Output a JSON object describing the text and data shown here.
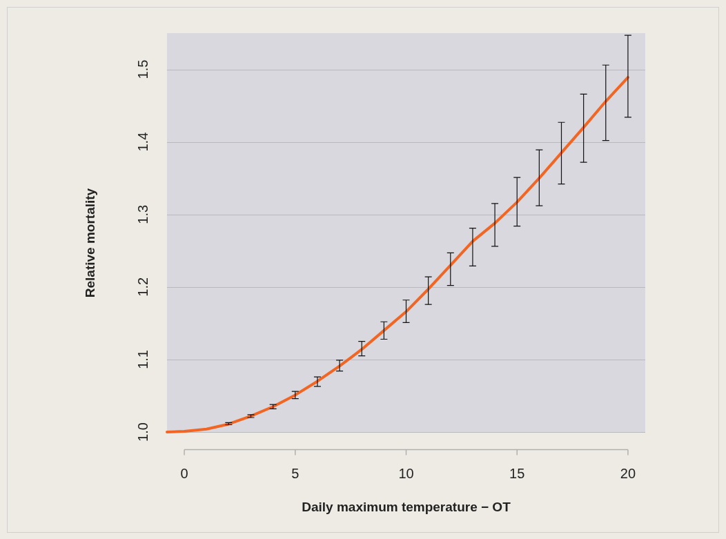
{
  "chart_data": {
    "type": "line",
    "xlabel": "Daily maximum temperature − OT",
    "ylabel": "Relative mortality",
    "x": [
      -0.78,
      0,
      1,
      2,
      3,
      4,
      5,
      6,
      7,
      8,
      9,
      10,
      11,
      12,
      13,
      14,
      15,
      16,
      17,
      18,
      19,
      20
    ],
    "series": [
      {
        "color": "#f26522",
        "values": [
          1.0,
          1.001,
          1.004,
          1.011,
          1.022,
          1.035,
          1.051,
          1.07,
          1.091,
          1.114,
          1.14,
          1.166,
          1.197,
          1.23,
          1.263,
          1.288,
          1.317,
          1.35,
          1.385,
          1.42,
          1.456,
          1.489
        ],
        "errors": [
          null,
          null,
          null,
          [
            1.01,
            1.013
          ],
          [
            1.02,
            1.024
          ],
          [
            1.032,
            1.038
          ],
          [
            1.046,
            1.056
          ],
          [
            1.063,
            1.076
          ],
          [
            1.084,
            1.099
          ],
          [
            1.105,
            1.125
          ],
          [
            1.128,
            1.152
          ],
          [
            1.151,
            1.182
          ],
          [
            1.176,
            1.214
          ],
          [
            1.202,
            1.247
          ],
          [
            1.229,
            1.281
          ],
          [
            1.256,
            1.315
          ],
          [
            1.284,
            1.351
          ],
          [
            1.312,
            1.389
          ],
          [
            1.342,
            1.427
          ],
          [
            1.372,
            1.466
          ],
          [
            1.402,
            1.506
          ],
          [
            1.434,
            1.547
          ]
        ]
      }
    ],
    "xlim": [
      -0.78,
      20.78
    ],
    "xticks": [
      0,
      5,
      10,
      15,
      20
    ],
    "ylim": [
      1.0,
      1.55
    ],
    "yticks": [
      {
        "value": 1.0,
        "label": "1.0"
      },
      {
        "value": 1.1,
        "label": "1.1"
      },
      {
        "value": 1.2,
        "label": "1.2"
      },
      {
        "value": 1.3,
        "label": "1.3"
      },
      {
        "value": 1.4,
        "label": "1.4"
      },
      {
        "value": 1.5,
        "label": "1.5"
      }
    ],
    "grid": "y",
    "marker": "none",
    "line_style": "solid",
    "legend": false
  }
}
